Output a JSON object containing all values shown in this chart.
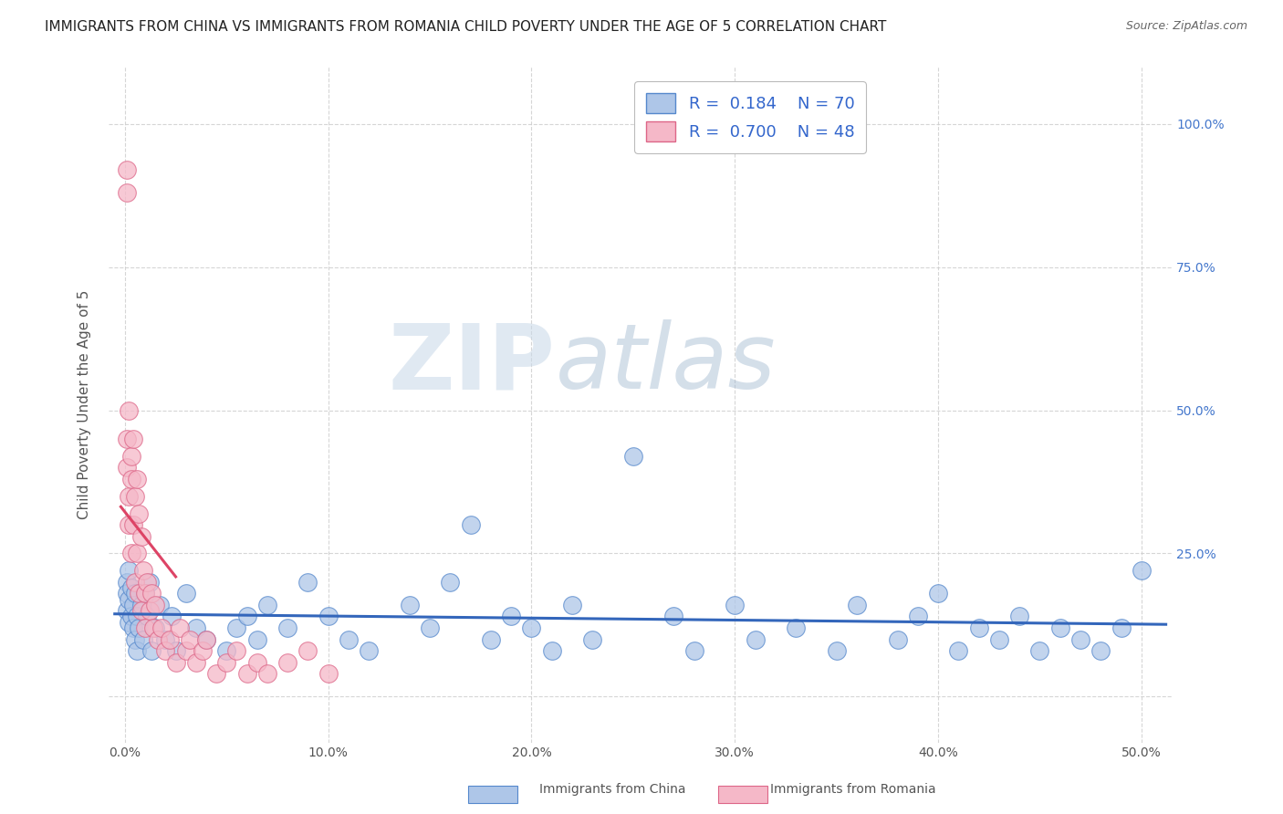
{
  "title": "IMMIGRANTS FROM CHINA VS IMMIGRANTS FROM ROMANIA CHILD POVERTY UNDER THE AGE OF 5 CORRELATION CHART",
  "source": "Source: ZipAtlas.com",
  "ylabel": "Child Poverty Under the Age of 5",
  "x_tick_vals": [
    0.0,
    0.1,
    0.2,
    0.3,
    0.4,
    0.5
  ],
  "x_tick_labels": [
    "0.0%",
    "10.0%",
    "20.0%",
    "30.0%",
    "40.0%",
    "50.0%"
  ],
  "y_tick_vals": [
    0.0,
    0.25,
    0.5,
    0.75,
    1.0
  ],
  "y_tick_labels_right": [
    "",
    "25.0%",
    "50.0%",
    "75.0%",
    "100.0%"
  ],
  "xlim": [
    -0.008,
    0.515
  ],
  "ylim": [
    -0.08,
    1.1
  ],
  "china_color": "#aec6e8",
  "romania_color": "#f5b8c8",
  "china_edge_color": "#5588cc",
  "romania_edge_color": "#dd6688",
  "trendline_china_color": "#3366bb",
  "trendline_romania_color": "#dd4466",
  "legend_R_china": "0.184",
  "legend_N_china": "70",
  "legend_R_romania": "0.700",
  "legend_N_romania": "48",
  "legend_label_china": "Immigrants from China",
  "legend_label_romania": "Immigrants from Romania",
  "watermark_zip": "ZIP",
  "watermark_atlas": "atlas",
  "background_color": "#ffffff",
  "grid_color": "#cccccc",
  "title_fontsize": 11,
  "axis_label_fontsize": 11,
  "tick_fontsize": 10,
  "china_x": [
    0.001,
    0.001,
    0.001,
    0.002,
    0.002,
    0.002,
    0.003,
    0.003,
    0.004,
    0.004,
    0.005,
    0.005,
    0.006,
    0.006,
    0.007,
    0.008,
    0.009,
    0.01,
    0.011,
    0.012,
    0.013,
    0.015,
    0.017,
    0.02,
    0.023,
    0.025,
    0.03,
    0.035,
    0.04,
    0.05,
    0.055,
    0.06,
    0.065,
    0.07,
    0.08,
    0.09,
    0.1,
    0.11,
    0.12,
    0.14,
    0.15,
    0.16,
    0.17,
    0.18,
    0.19,
    0.2,
    0.21,
    0.22,
    0.23,
    0.25,
    0.27,
    0.28,
    0.3,
    0.31,
    0.33,
    0.35,
    0.36,
    0.38,
    0.39,
    0.4,
    0.41,
    0.42,
    0.43,
    0.44,
    0.45,
    0.46,
    0.47,
    0.48,
    0.49,
    0.5
  ],
  "china_y": [
    0.2,
    0.18,
    0.15,
    0.22,
    0.17,
    0.13,
    0.19,
    0.14,
    0.16,
    0.12,
    0.18,
    0.1,
    0.14,
    0.08,
    0.12,
    0.16,
    0.1,
    0.18,
    0.14,
    0.2,
    0.08,
    0.12,
    0.16,
    0.1,
    0.14,
    0.08,
    0.18,
    0.12,
    0.1,
    0.08,
    0.12,
    0.14,
    0.1,
    0.16,
    0.12,
    0.2,
    0.14,
    0.1,
    0.08,
    0.16,
    0.12,
    0.2,
    0.3,
    0.1,
    0.14,
    0.12,
    0.08,
    0.16,
    0.1,
    0.42,
    0.14,
    0.08,
    0.16,
    0.1,
    0.12,
    0.08,
    0.16,
    0.1,
    0.14,
    0.18,
    0.08,
    0.12,
    0.1,
    0.14,
    0.08,
    0.12,
    0.1,
    0.08,
    0.12,
    0.22
  ],
  "romania_x": [
    0.001,
    0.001,
    0.001,
    0.001,
    0.002,
    0.002,
    0.002,
    0.003,
    0.003,
    0.003,
    0.004,
    0.004,
    0.005,
    0.005,
    0.006,
    0.006,
    0.007,
    0.007,
    0.008,
    0.008,
    0.009,
    0.01,
    0.01,
    0.011,
    0.012,
    0.013,
    0.014,
    0.015,
    0.016,
    0.018,
    0.02,
    0.022,
    0.025,
    0.027,
    0.03,
    0.032,
    0.035,
    0.038,
    0.04,
    0.045,
    0.05,
    0.055,
    0.06,
    0.065,
    0.07,
    0.08,
    0.09,
    0.1
  ],
  "romania_y": [
    0.92,
    0.88,
    0.45,
    0.4,
    0.5,
    0.35,
    0.3,
    0.42,
    0.38,
    0.25,
    0.45,
    0.3,
    0.35,
    0.2,
    0.38,
    0.25,
    0.32,
    0.18,
    0.28,
    0.15,
    0.22,
    0.18,
    0.12,
    0.2,
    0.15,
    0.18,
    0.12,
    0.16,
    0.1,
    0.12,
    0.08,
    0.1,
    0.06,
    0.12,
    0.08,
    0.1,
    0.06,
    0.08,
    0.1,
    0.04,
    0.06,
    0.08,
    0.04,
    0.06,
    0.04,
    0.06,
    0.08,
    0.04
  ]
}
